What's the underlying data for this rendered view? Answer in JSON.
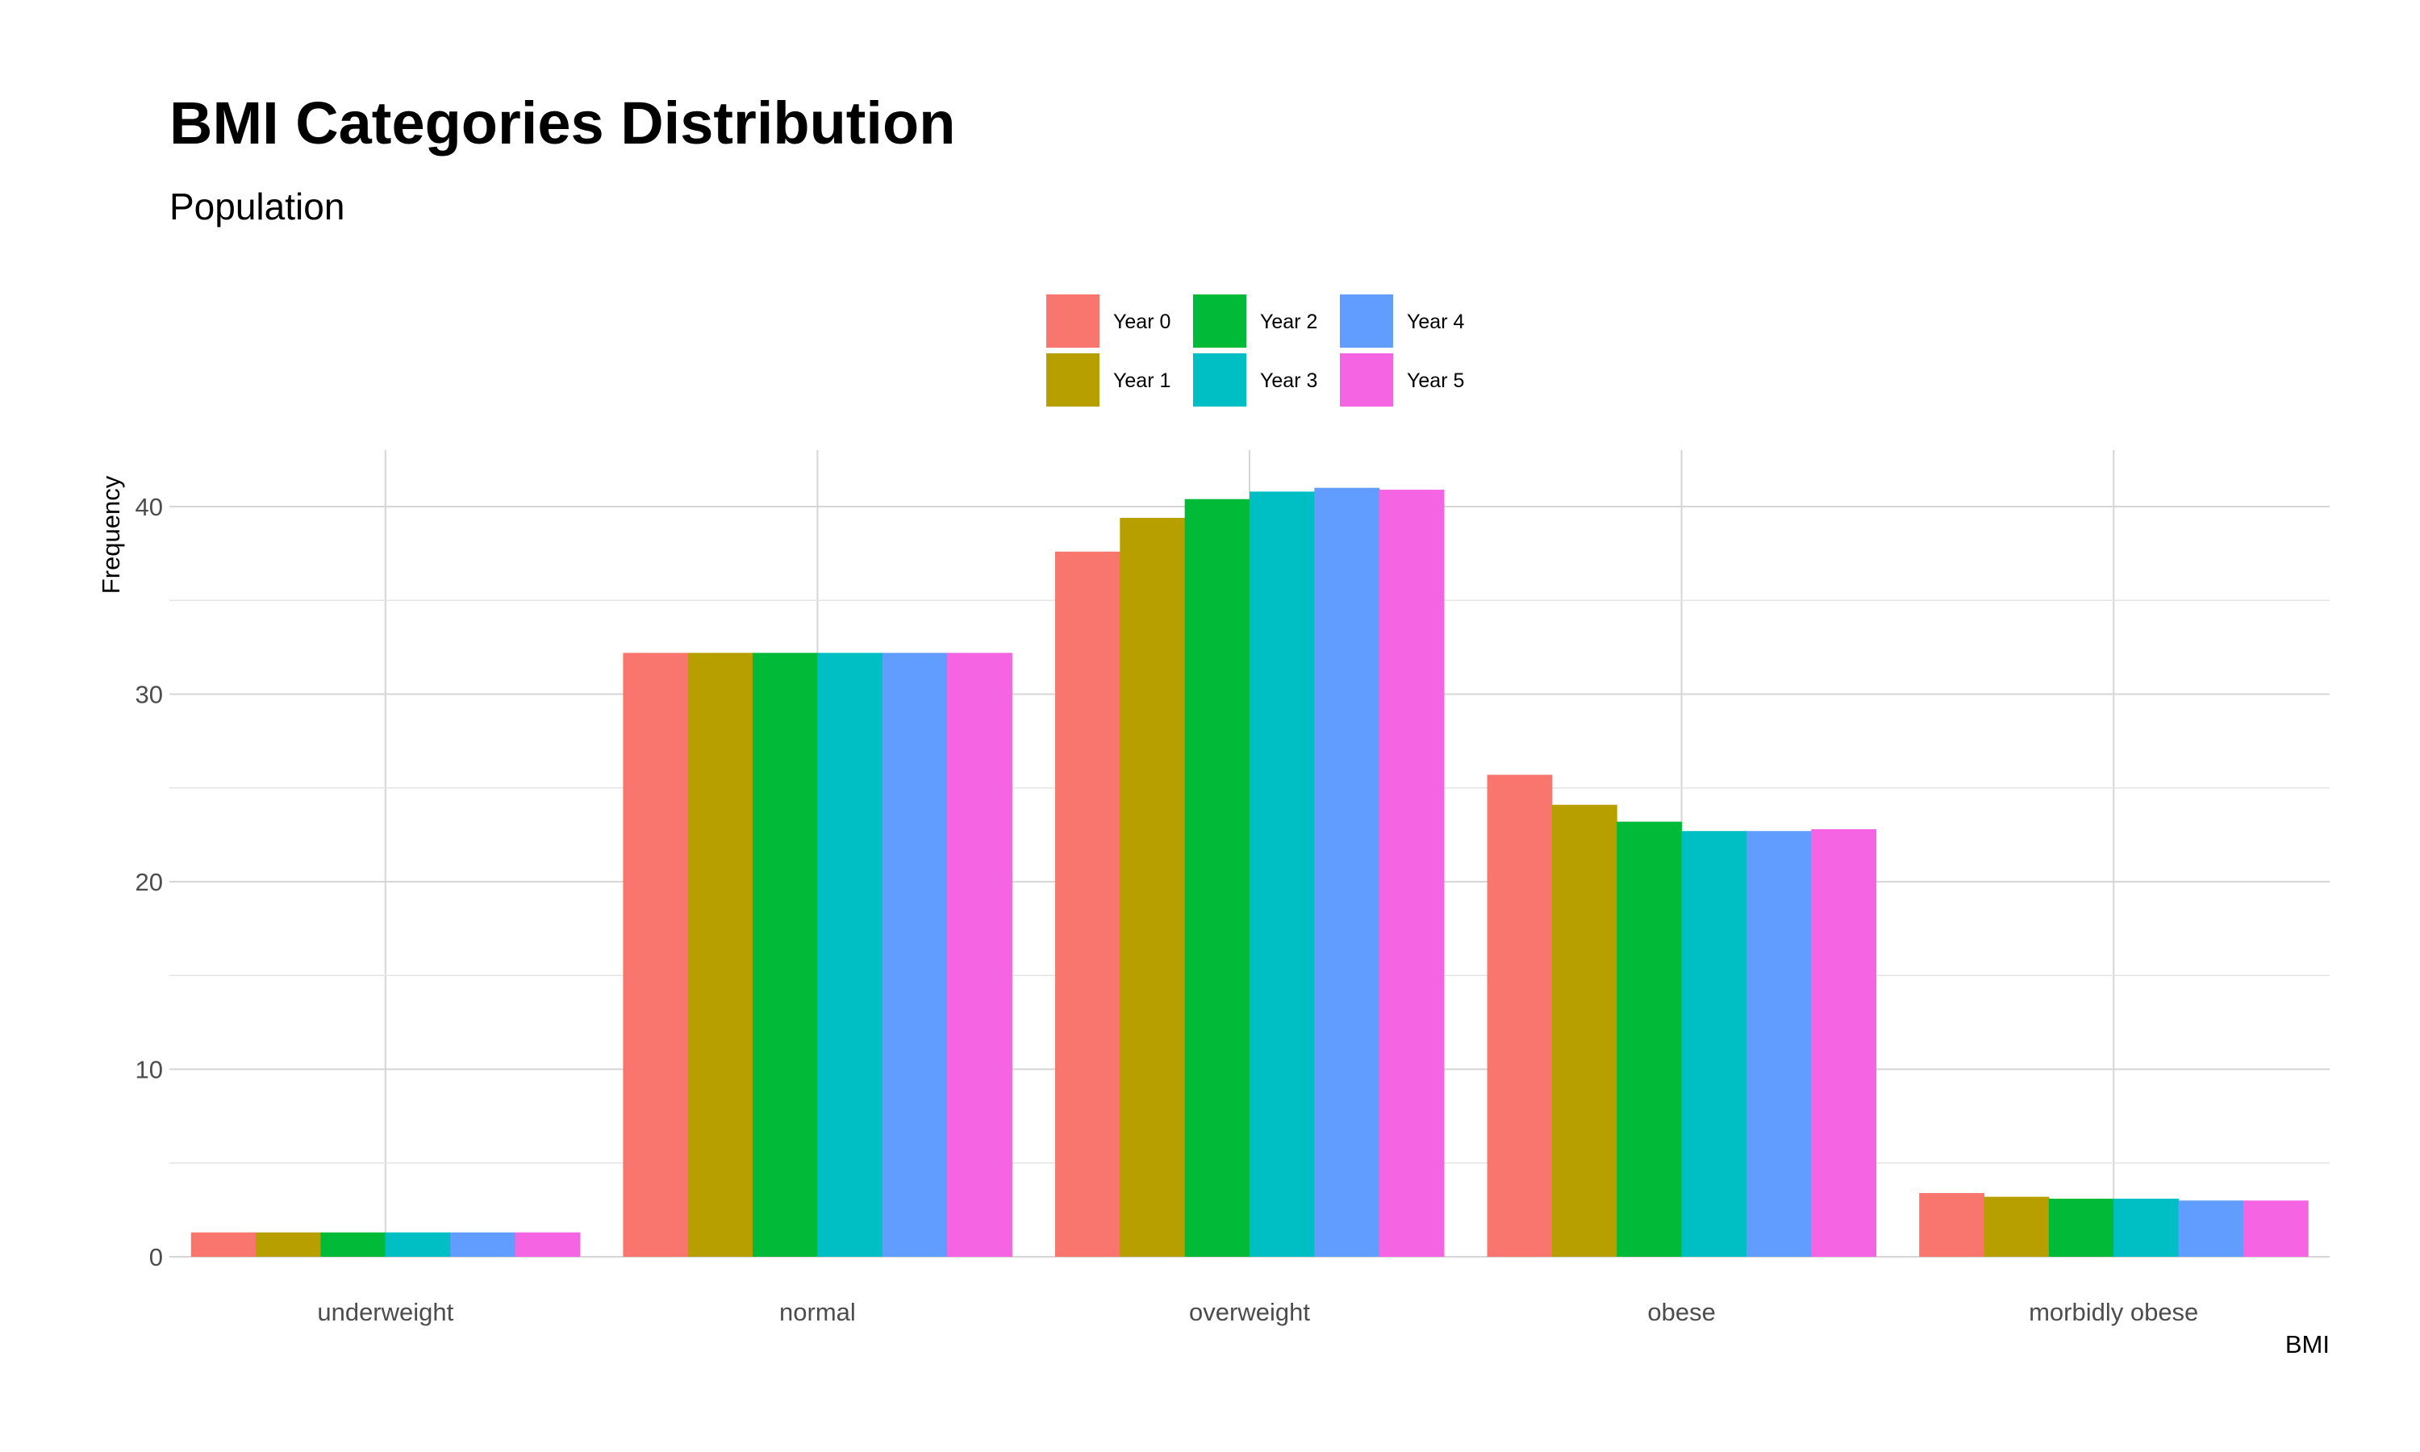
{
  "chart_data": {
    "type": "bar",
    "title": "BMI Categories Distribution",
    "subtitle": "Population",
    "xlabel": "BMI",
    "ylabel": "Frequency",
    "categories": [
      "underweight",
      "normal",
      "overweight",
      "obese",
      "morbidly obese"
    ],
    "ylim": [
      0,
      43
    ],
    "yticks": [
      0,
      10,
      20,
      30,
      40
    ],
    "grid": true,
    "legend_position": "top",
    "series": [
      {
        "name": "Year 0",
        "color": "#F8766D",
        "values": [
          1.3,
          32.2,
          37.6,
          25.7,
          3.4
        ]
      },
      {
        "name": "Year 1",
        "color": "#B79F00",
        "values": [
          1.3,
          32.2,
          39.4,
          24.1,
          3.2
        ]
      },
      {
        "name": "Year 2",
        "color": "#00BA38",
        "values": [
          1.3,
          32.2,
          40.4,
          23.2,
          3.1
        ]
      },
      {
        "name": "Year 3",
        "color": "#00BFC4",
        "values": [
          1.3,
          32.2,
          40.8,
          22.7,
          3.1
        ]
      },
      {
        "name": "Year 4",
        "color": "#619CFF",
        "values": [
          1.3,
          32.2,
          41.0,
          22.7,
          3.0
        ]
      },
      {
        "name": "Year 5",
        "color": "#F564E3",
        "values": [
          1.3,
          32.2,
          40.9,
          22.8,
          3.0
        ]
      }
    ]
  }
}
